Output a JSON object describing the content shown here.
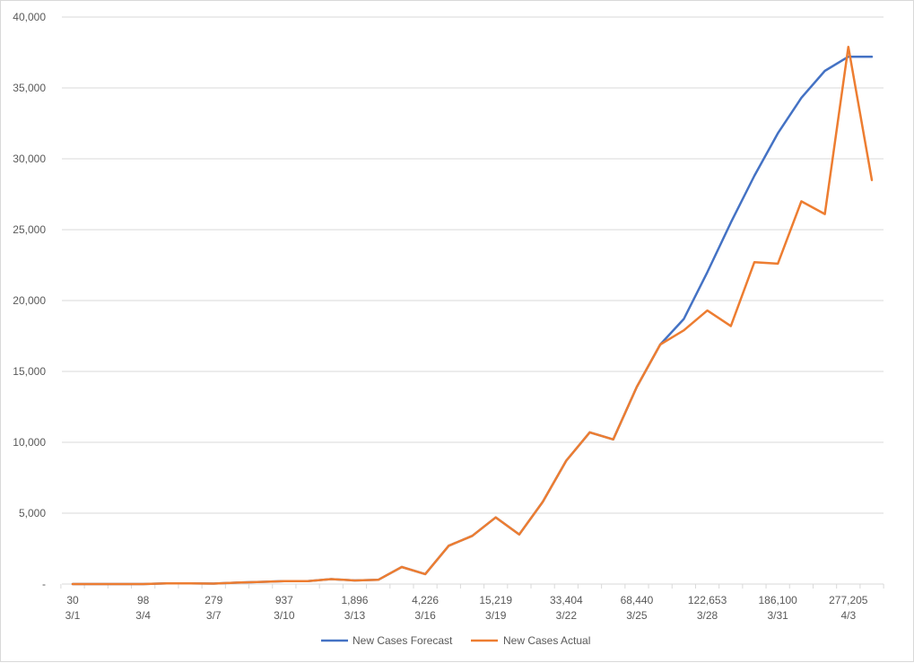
{
  "chart_data": {
    "type": "line",
    "title": "",
    "xlabel": "",
    "ylabel": "",
    "ylim": [
      0,
      40000
    ],
    "y_ticks": [
      0,
      5000,
      10000,
      15000,
      20000,
      25000,
      30000,
      35000,
      40000
    ],
    "y_tick_labels": [
      "-",
      "5,000",
      "10,000",
      "15,000",
      "20,000",
      "25,000",
      "30,000",
      "35,000",
      "40,000"
    ],
    "grid": true,
    "legend_position": "bottom",
    "x_category_labels": [
      {
        "index": 0,
        "top": "30",
        "bottom": "3/1"
      },
      {
        "index": 3,
        "top": "98",
        "bottom": "3/4"
      },
      {
        "index": 6,
        "top": "279",
        "bottom": "3/7"
      },
      {
        "index": 9,
        "top": "937",
        "bottom": "3/10"
      },
      {
        "index": 12,
        "top": "1,896",
        "bottom": "3/13"
      },
      {
        "index": 15,
        "top": "4,226",
        "bottom": "3/16"
      },
      {
        "index": 18,
        "top": "15,219",
        "bottom": "3/19"
      },
      {
        "index": 21,
        "top": "33,404",
        "bottom": "3/22"
      },
      {
        "index": 24,
        "top": "68,440",
        "bottom": "3/25"
      },
      {
        "index": 27,
        "top": "122,653",
        "bottom": "3/28"
      },
      {
        "index": 30,
        "top": "186,100",
        "bottom": "3/31"
      },
      {
        "index": 33,
        "top": "277,205",
        "bottom": "4/3"
      }
    ],
    "category_count": 35,
    "series": [
      {
        "name": "New Cases Forecast",
        "color": "#4472c4",
        "values": [
          0,
          0,
          0,
          0,
          50,
          50,
          30,
          100,
          150,
          200,
          200,
          350,
          250,
          300,
          1200,
          700,
          2700,
          3400,
          4700,
          3500,
          5800,
          8700,
          10700,
          10200,
          13900,
          16900,
          18700,
          22000,
          25500,
          28800,
          31800,
          34300,
          36200,
          37200,
          37200
        ]
      },
      {
        "name": "New Cases Actual",
        "color": "#ed7d31",
        "values": [
          0,
          0,
          0,
          0,
          50,
          50,
          30,
          100,
          150,
          200,
          200,
          350,
          250,
          300,
          1200,
          700,
          2700,
          3400,
          4700,
          3500,
          5800,
          8700,
          10700,
          10200,
          13900,
          16900,
          17900,
          19300,
          18200,
          22700,
          22600,
          27000,
          26100,
          37900,
          28500
        ]
      }
    ]
  }
}
